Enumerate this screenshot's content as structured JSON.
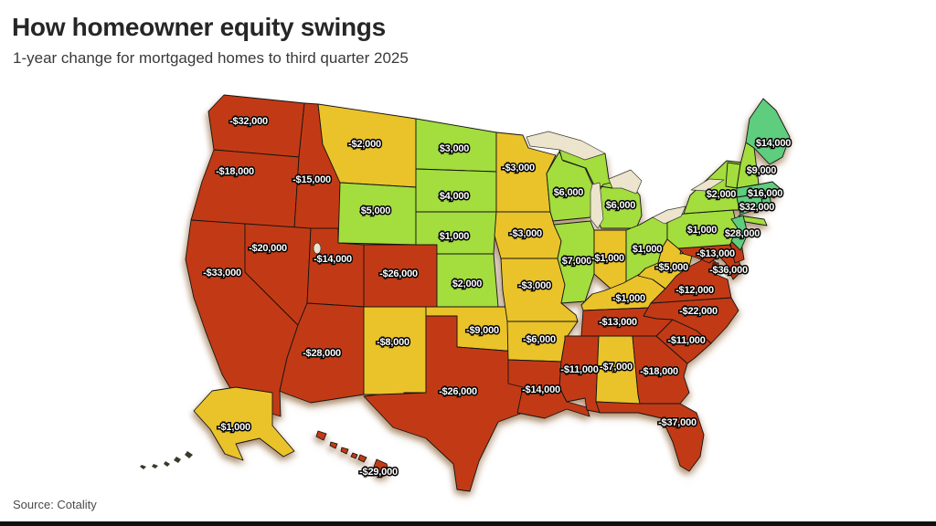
{
  "header": {
    "title": "How homeowner equity swings",
    "subtitle": "1-year change for mortgaged homes to third quarter 2025"
  },
  "footer": {
    "source": "Source: Cotality"
  },
  "palette": {
    "large_loss": "#c23a15",
    "small_loss": "#eac32a",
    "small_gain": "#a3dd3e",
    "large_gain": "#5ecd7d",
    "water": "#ece4cc",
    "island_dark": "#3a3a2a"
  },
  "chart_data": {
    "type": "choropleth_map",
    "region": "United States",
    "title": "How homeowner equity swings",
    "subtitle": "1-year change for mortgaged homes to third quarter 2025",
    "unit": "USD",
    "source": "Source: Cotality",
    "tone_meaning": {
      "large_loss": "loss of about $10,000 or more",
      "small_loss": "loss under about $10,000",
      "small_gain": "gain under about $10,000",
      "large_gain": "gain of about $10,000 or more"
    },
    "states": [
      {
        "id": "WA",
        "name": "Washington",
        "label": "-$32,000",
        "value": -32000,
        "tone": "large_loss"
      },
      {
        "id": "OR",
        "name": "Oregon",
        "label": "-$18,000",
        "value": -18000,
        "tone": "large_loss"
      },
      {
        "id": "CA",
        "name": "California",
        "label": "-$33,000",
        "value": -33000,
        "tone": "large_loss"
      },
      {
        "id": "ID",
        "name": "Idaho",
        "label": "-$15,000",
        "value": -15000,
        "tone": "large_loss"
      },
      {
        "id": "NV",
        "name": "Nevada",
        "label": "-$20,000",
        "value": -20000,
        "tone": "large_loss"
      },
      {
        "id": "UT",
        "name": "Utah",
        "label": "-$14,000",
        "value": -14000,
        "tone": "large_loss"
      },
      {
        "id": "AZ",
        "name": "Arizona",
        "label": "-$28,000",
        "value": -28000,
        "tone": "large_loss"
      },
      {
        "id": "MT",
        "name": "Montana",
        "label": "-$2,000",
        "value": -2000,
        "tone": "small_loss"
      },
      {
        "id": "WY",
        "name": "Wyoming",
        "label": "$5,000",
        "value": 5000,
        "tone": "small_gain"
      },
      {
        "id": "CO",
        "name": "Colorado",
        "label": "-$26,000",
        "value": -26000,
        "tone": "large_loss"
      },
      {
        "id": "NM",
        "name": "New Mexico",
        "label": "-$8,000",
        "value": -8000,
        "tone": "small_loss"
      },
      {
        "id": "ND",
        "name": "North Dakota",
        "label": "$3,000",
        "value": 3000,
        "tone": "small_gain"
      },
      {
        "id": "SD",
        "name": "South Dakota",
        "label": "$4,000",
        "value": 4000,
        "tone": "small_gain"
      },
      {
        "id": "NE",
        "name": "Nebraska",
        "label": "$1,000",
        "value": 1000,
        "tone": "small_gain"
      },
      {
        "id": "KS",
        "name": "Kansas",
        "label": "$2,000",
        "value": 2000,
        "tone": "small_gain"
      },
      {
        "id": "OK",
        "name": "Oklahoma",
        "label": "-$9,000",
        "value": -9000,
        "tone": "small_loss"
      },
      {
        "id": "TX",
        "name": "Texas",
        "label": "-$26,000",
        "value": -26000,
        "tone": "large_loss"
      },
      {
        "id": "MN",
        "name": "Minnesota",
        "label": "-$3,000",
        "value": -3000,
        "tone": "small_loss"
      },
      {
        "id": "IA",
        "name": "Iowa",
        "label": "-$3,000",
        "value": -3000,
        "tone": "small_loss"
      },
      {
        "id": "MO",
        "name": "Missouri",
        "label": "-$3,000",
        "value": -3000,
        "tone": "small_loss"
      },
      {
        "id": "AR",
        "name": "Arkansas",
        "label": "-$6,000",
        "value": -6000,
        "tone": "small_loss"
      },
      {
        "id": "LA",
        "name": "Louisiana",
        "label": "-$14,000",
        "value": -14000,
        "tone": "large_loss"
      },
      {
        "id": "WI",
        "name": "Wisconsin",
        "label": "$6,000",
        "value": 6000,
        "tone": "small_gain"
      },
      {
        "id": "MI",
        "name": "Michigan",
        "label": "$6,000",
        "value": 6000,
        "tone": "small_gain"
      },
      {
        "id": "IL",
        "name": "Illinois",
        "label": "$7,000",
        "value": 7000,
        "tone": "small_gain"
      },
      {
        "id": "IN",
        "name": "Indiana",
        "label": "-$1,000",
        "value": -1000,
        "tone": "small_loss"
      },
      {
        "id": "OH",
        "name": "Ohio",
        "label": "$1,000",
        "value": 1000,
        "tone": "small_gain"
      },
      {
        "id": "KY",
        "name": "Kentucky",
        "label": "-$1,000",
        "value": -1000,
        "tone": "small_loss"
      },
      {
        "id": "TN",
        "name": "Tennessee",
        "label": "-$13,000",
        "value": -13000,
        "tone": "large_loss"
      },
      {
        "id": "MS",
        "name": "Mississippi",
        "label": "-$11,000",
        "value": -11000,
        "tone": "large_loss"
      },
      {
        "id": "AL",
        "name": "Alabama",
        "label": "-$7,000",
        "value": -7000,
        "tone": "small_loss"
      },
      {
        "id": "GA",
        "name": "Georgia",
        "label": "-$18,000",
        "value": -18000,
        "tone": "large_loss"
      },
      {
        "id": "FL",
        "name": "Florida",
        "label": "-$37,000",
        "value": -37000,
        "tone": "large_loss"
      },
      {
        "id": "SC",
        "name": "South Carolina",
        "label": "-$11,000",
        "value": -11000,
        "tone": "large_loss"
      },
      {
        "id": "NC",
        "name": "North Carolina",
        "label": "-$22,000",
        "value": -22000,
        "tone": "large_loss"
      },
      {
        "id": "VA",
        "name": "Virginia",
        "label": "-$12,000",
        "value": -12000,
        "tone": "large_loss"
      },
      {
        "id": "WV",
        "name": "West Virginia",
        "label": "-$5,000",
        "value": -5000,
        "tone": "small_loss"
      },
      {
        "id": "MD",
        "name": "Maryland",
        "label": "-$13,000",
        "value": -13000,
        "tone": "large_loss"
      },
      {
        "id": "DE",
        "name": "Delaware",
        "label": "",
        "value": null,
        "tone": "large_loss"
      },
      {
        "id": "DC",
        "name": "District of Columbia",
        "label": "-$36,000",
        "value": -36000,
        "tone": "large_loss"
      },
      {
        "id": "PA",
        "name": "Pennsylvania",
        "label": "$1,000",
        "value": 1000,
        "tone": "small_gain"
      },
      {
        "id": "NY",
        "name": "New York",
        "label": "$2,000",
        "value": 2000,
        "tone": "small_gain"
      },
      {
        "id": "NJ",
        "name": "New Jersey",
        "label": "$28,000",
        "value": 28000,
        "tone": "large_gain"
      },
      {
        "id": "VT",
        "name": "Vermont",
        "label": "",
        "value": null,
        "tone": "small_gain"
      },
      {
        "id": "NH",
        "name": "New Hampshire",
        "label": "$9,000",
        "value": 9000,
        "tone": "small_gain"
      },
      {
        "id": "ME",
        "name": "Maine",
        "label": "$14,000",
        "value": 14000,
        "tone": "large_gain"
      },
      {
        "id": "MA",
        "name": "Massachusetts",
        "label": "$16,000",
        "value": 16000,
        "tone": "large_gain"
      },
      {
        "id": "RI",
        "name": "Rhode Island",
        "label": "",
        "value": null,
        "tone": "large_gain"
      },
      {
        "id": "CT",
        "name": "Connecticut",
        "label": "$32,000",
        "value": 32000,
        "tone": "large_gain"
      },
      {
        "id": "AK",
        "name": "Alaska",
        "label": "-$1,000",
        "value": -1000,
        "tone": "small_loss"
      },
      {
        "id": "HI",
        "name": "Hawaii",
        "label": "-$29,000",
        "value": -29000,
        "tone": "large_loss"
      }
    ]
  }
}
